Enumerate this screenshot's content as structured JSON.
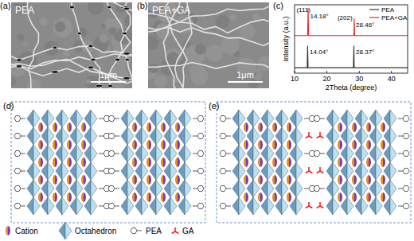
{
  "panels": {
    "a": {
      "label": "(a)",
      "title": "PEA",
      "scale_bar": "1μm"
    },
    "b": {
      "label": "(b)",
      "title": "PEA+GA",
      "scale_bar": "1μm"
    },
    "c": {
      "label": "(c)"
    },
    "d": {
      "label": "(d)"
    },
    "e": {
      "label": "(e)"
    }
  },
  "chart_data": {
    "type": "line",
    "x_label": "2Theta (degree)",
    "y_label": "Intensity (a.u.)",
    "x": [
      10,
      13.9,
      14.04,
      14.18,
      14.35,
      28.2,
      28.37,
      28.46,
      28.6,
      45
    ],
    "series": [
      {
        "name": "PEA",
        "color": "#333333",
        "values": [
          8,
          8,
          40,
          8,
          8,
          8,
          40,
          8,
          8,
          8
        ]
      },
      {
        "name": "PEA+GA",
        "color": "#e8262a",
        "values": [
          55,
          55,
          55,
          95,
          55,
          55,
          55,
          80,
          55,
          55
        ]
      }
    ],
    "xlim": [
      10,
      45
    ],
    "xticks": [
      10,
      20,
      30,
      40
    ],
    "ylim": [
      0,
      100
    ],
    "tick_labels": "x",
    "legend": "upper right",
    "annotations": [
      {
        "text": "(111)",
        "x": 10.6,
        "y": 90
      },
      {
        "text": "14.18°",
        "x": 14.8,
        "y": 80
      },
      {
        "text": "(202)",
        "x": 23.3,
        "y": 78
      },
      {
        "text": "28.46°",
        "x": 29.0,
        "y": 68
      },
      {
        "text": "14.04°",
        "x": 14.7,
        "y": 28
      },
      {
        "text": "28.37°",
        "x": 29.0,
        "y": 28
      }
    ]
  },
  "schematic_legend": [
    "Cation",
    "Octahedron",
    "PEA",
    "GA"
  ]
}
